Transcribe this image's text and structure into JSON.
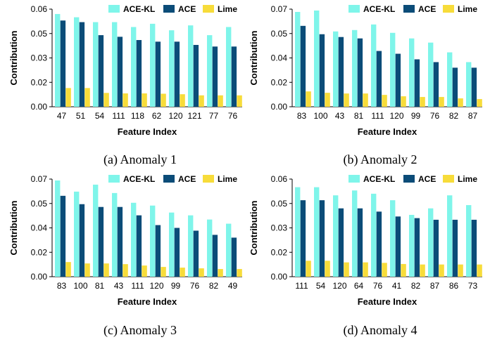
{
  "colors": {
    "ACE-KL": "#7ff5ea",
    "ACE": "#0b4c78",
    "Lime": "#f7dc3a"
  },
  "chart_data": [
    {
      "type": "bar",
      "caption": "(a) Anomaly 1",
      "xlabel": "Feature Index",
      "ylabel": "Contribution",
      "ylim": [
        0,
        0.06
      ],
      "yticks": [
        "0.00",
        "0.02",
        "0.03",
        "0.05",
        "0.06"
      ],
      "categories": [
        "47",
        "51",
        "54",
        "111",
        "118",
        "62",
        "120",
        "121",
        "77",
        "76"
      ],
      "legend": "top-right",
      "series": [
        {
          "name": "ACE-KL",
          "values": [
            0.057,
            0.055,
            0.052,
            0.052,
            0.049,
            0.051,
            0.047,
            0.05,
            0.044,
            0.049
          ]
        },
        {
          "name": "ACE",
          "values": [
            0.053,
            0.052,
            0.044,
            0.043,
            0.041,
            0.04,
            0.04,
            0.038,
            0.037,
            0.037
          ]
        },
        {
          "name": "Lime",
          "values": [
            0.0115,
            0.0115,
            0.0085,
            0.0082,
            0.0082,
            0.008,
            0.0077,
            0.007,
            0.007,
            0.007
          ]
        }
      ]
    },
    {
      "type": "bar",
      "caption": "(b) Anomaly 2",
      "xlabel": "Feature Index",
      "ylabel": "Contribution",
      "ylim": [
        0,
        0.07
      ],
      "yticks": [
        "0.00",
        "0.02",
        "0.04",
        "0.05",
        "0.07"
      ],
      "categories": [
        "83",
        "100",
        "43",
        "81",
        "111",
        "120",
        "99",
        "76",
        "82",
        "87"
      ],
      "legend": "top-right",
      "series": [
        {
          "name": "ACE-KL",
          "values": [
            0.068,
            0.069,
            0.054,
            0.055,
            0.059,
            0.053,
            0.049,
            0.046,
            0.039,
            0.032
          ]
        },
        {
          "name": "ACE",
          "values": [
            0.058,
            0.052,
            0.05,
            0.049,
            0.04,
            0.038,
            0.034,
            0.032,
            0.028,
            0.028
          ]
        },
        {
          "name": "Lime",
          "values": [
            0.011,
            0.01,
            0.0095,
            0.0095,
            0.0085,
            0.0075,
            0.007,
            0.007,
            0.006,
            0.0055
          ]
        }
      ]
    },
    {
      "type": "bar",
      "caption": "(c) Anomaly 3",
      "xlabel": "Feature Index",
      "ylabel": "Contribution",
      "ylim": [
        0,
        0.07
      ],
      "yticks": [
        "0.00",
        "0.02",
        "0.04",
        "0.05",
        "0.07"
      ],
      "categories": [
        "83",
        "100",
        "81",
        "43",
        "111",
        "120",
        "99",
        "76",
        "82",
        "49"
      ],
      "legend": "top-right",
      "series": [
        {
          "name": "ACE-KL",
          "values": [
            0.069,
            0.061,
            0.066,
            0.06,
            0.053,
            0.051,
            0.046,
            0.044,
            0.041,
            0.038
          ]
        },
        {
          "name": "ACE",
          "values": [
            0.058,
            0.052,
            0.05,
            0.05,
            0.044,
            0.037,
            0.035,
            0.033,
            0.03,
            0.028
          ]
        },
        {
          "name": "Lime",
          "values": [
            0.0105,
            0.0095,
            0.0095,
            0.009,
            0.008,
            0.007,
            0.0065,
            0.006,
            0.0055,
            0.0055
          ]
        }
      ]
    },
    {
      "type": "bar",
      "caption": "(d) Anomaly 4",
      "xlabel": "Feature Index",
      "ylabel": "Contribution",
      "ylim": [
        0,
        0.06
      ],
      "yticks": [
        "0.00",
        "0.02",
        "0.03",
        "0.05",
        "0.06"
      ],
      "categories": [
        "111",
        "54",
        "120",
        "64",
        "76",
        "41",
        "82",
        "87",
        "86",
        "73"
      ],
      "legend": "top-right",
      "series": [
        {
          "name": "ACE-KL",
          "values": [
            0.055,
            0.055,
            0.05,
            0.053,
            0.051,
            0.047,
            0.038,
            0.042,
            0.05,
            0.044
          ]
        },
        {
          "name": "ACE",
          "values": [
            0.047,
            0.047,
            0.042,
            0.042,
            0.04,
            0.037,
            0.036,
            0.035,
            0.035,
            0.035
          ]
        },
        {
          "name": "Lime",
          "values": [
            0.0098,
            0.0098,
            0.0088,
            0.0088,
            0.0085,
            0.0078,
            0.0075,
            0.0075,
            0.0075,
            0.0075
          ]
        }
      ]
    }
  ]
}
